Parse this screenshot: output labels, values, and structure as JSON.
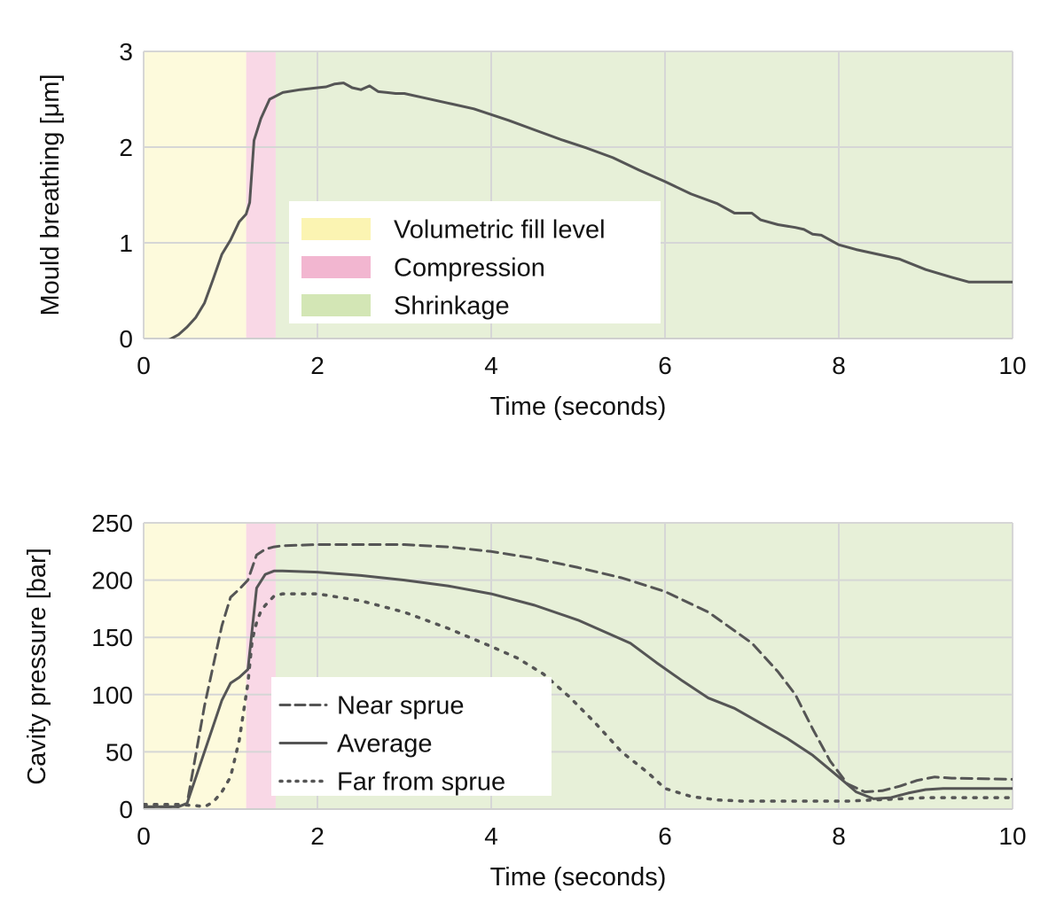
{
  "chart_data": [
    {
      "type": "line",
      "xlabel": "Time (seconds)",
      "ylabel": "Mould breathing [μm]",
      "xlim": [
        0,
        10
      ],
      "ylim": [
        0,
        3
      ],
      "xticks": [
        0,
        2,
        4,
        6,
        8,
        10
      ],
      "yticks": [
        0,
        1,
        2,
        3
      ],
      "grid": true,
      "legend_position": "center-left",
      "legend": [
        {
          "label": "Volumetric fill level",
          "color": "#fbf4b2"
        },
        {
          "label": "Compression",
          "color": "#f2b6d0"
        },
        {
          "label": "Shrinkage",
          "color": "#d3e6b5"
        }
      ],
      "phases": [
        {
          "label": "Volumetric fill level",
          "start": 0,
          "end": 1.18,
          "color": "#fdfadc"
        },
        {
          "label": "Compression",
          "start": 1.18,
          "end": 1.52,
          "color": "#f9d8e6"
        },
        {
          "label": "Shrinkage",
          "start": 1.52,
          "end": 10,
          "color": "#e7f0d8"
        }
      ],
      "series": [
        {
          "style": "solid",
          "color": "#555555",
          "x": [
            0,
            0.1,
            0.2,
            0.3,
            0.4,
            0.5,
            0.6,
            0.7,
            0.8,
            0.9,
            1.0,
            1.1,
            1.18,
            1.22,
            1.27,
            1.35,
            1.45,
            1.6,
            1.8,
            2.0,
            2.1,
            2.2,
            2.3,
            2.4,
            2.5,
            2.6,
            2.7,
            2.8,
            2.9,
            3.0,
            3.2,
            3.5,
            3.8,
            4.0,
            4.2,
            4.5,
            4.8,
            5.1,
            5.4,
            5.7,
            6.0,
            6.3,
            6.6,
            6.8,
            7.0,
            7.1,
            7.3,
            7.5,
            7.6,
            7.7,
            7.8,
            8.0,
            8.2,
            8.5,
            8.7,
            9.0,
            9.3,
            9.5,
            10.0
          ],
          "y": [
            -0.02,
            -0.03,
            -0.03,
            -0.01,
            0.04,
            0.12,
            0.22,
            0.37,
            0.62,
            0.88,
            1.03,
            1.22,
            1.3,
            1.42,
            2.07,
            2.3,
            2.5,
            2.57,
            2.6,
            2.62,
            2.63,
            2.66,
            2.67,
            2.62,
            2.6,
            2.64,
            2.58,
            2.57,
            2.56,
            2.56,
            2.52,
            2.46,
            2.4,
            2.34,
            2.28,
            2.18,
            2.08,
            1.99,
            1.89,
            1.76,
            1.64,
            1.51,
            1.41,
            1.31,
            1.31,
            1.24,
            1.19,
            1.16,
            1.14,
            1.09,
            1.08,
            0.98,
            0.93,
            0.87,
            0.83,
            0.72,
            0.64,
            0.59,
            0.59
          ]
        }
      ]
    },
    {
      "type": "line",
      "xlabel": "Time (seconds)",
      "ylabel": "Cavity pressure [bar]",
      "xlim": [
        0,
        10
      ],
      "ylim": [
        0,
        250
      ],
      "xticks": [
        0,
        2,
        4,
        6,
        8,
        10
      ],
      "yticks": [
        0,
        50,
        100,
        150,
        200,
        250
      ],
      "grid": true,
      "legend_position": "lower-left",
      "legend": [
        {
          "label": "Near sprue",
          "style": "dashed"
        },
        {
          "label": "Average",
          "style": "solid"
        },
        {
          "label": "Far from sprue",
          "style": "dotted"
        }
      ],
      "phases": [
        {
          "label": "Volumetric fill level",
          "start": 0,
          "end": 1.18,
          "color": "#fdfadc"
        },
        {
          "label": "Compression",
          "start": 1.18,
          "end": 1.52,
          "color": "#f9d8e6"
        },
        {
          "label": "Shrinkage",
          "start": 1.52,
          "end": 10,
          "color": "#e7f0d8"
        }
      ],
      "series": [
        {
          "name": "Near sprue",
          "style": "dashed",
          "color": "#555555",
          "x": [
            0,
            0.4,
            0.5,
            0.7,
            0.9,
            1.0,
            1.1,
            1.2,
            1.3,
            1.4,
            1.5,
            1.6,
            2.0,
            2.5,
            3.0,
            3.5,
            4.0,
            4.5,
            5.0,
            5.5,
            6.0,
            6.5,
            7.0,
            7.3,
            7.5,
            7.7,
            7.9,
            8.1,
            8.3,
            8.5,
            8.7,
            8.9,
            9.1,
            9.3,
            10.0
          ],
          "y": [
            2,
            2,
            5,
            90,
            160,
            185,
            192,
            200,
            222,
            227,
            229,
            230,
            231,
            231,
            231,
            229,
            225,
            219,
            211,
            202,
            190,
            172,
            145,
            120,
            100,
            70,
            42,
            22,
            15,
            16,
            20,
            25,
            28,
            27,
            26
          ]
        },
        {
          "name": "Average",
          "style": "solid",
          "color": "#555555",
          "x": [
            0,
            0.4,
            0.5,
            0.7,
            0.9,
            1.0,
            1.1,
            1.2,
            1.3,
            1.4,
            1.5,
            1.6,
            2.0,
            2.5,
            3.0,
            3.5,
            4.0,
            4.5,
            5.0,
            5.3,
            5.6,
            5.9,
            6.2,
            6.5,
            6.8,
            7.1,
            7.4,
            7.7,
            8.0,
            8.2,
            8.4,
            8.6,
            8.8,
            9.0,
            9.2,
            10.0
          ],
          "y": [
            2,
            2,
            5,
            50,
            95,
            110,
            115,
            122,
            193,
            205,
            208,
            208,
            207,
            204,
            200,
            195,
            188,
            178,
            165,
            155,
            145,
            128,
            112,
            97,
            88,
            75,
            62,
            47,
            28,
            15,
            9,
            10,
            14,
            17,
            18,
            18
          ]
        },
        {
          "name": "Far from sprue",
          "style": "dotted",
          "color": "#555555",
          "x": [
            0,
            0.4,
            0.6,
            0.7,
            0.8,
            0.9,
            1.0,
            1.1,
            1.2,
            1.25,
            1.3,
            1.35,
            1.4,
            1.5,
            1.6,
            2.0,
            2.5,
            3.0,
            3.5,
            4.0,
            4.3,
            4.6,
            4.9,
            5.2,
            5.5,
            5.8,
            6.0,
            6.3,
            6.6,
            6.9,
            7.2,
            7.5,
            7.8,
            8.1,
            8.4,
            8.7,
            9.0,
            10.0
          ],
          "y": [
            4,
            4,
            3,
            2,
            6,
            15,
            28,
            60,
            110,
            148,
            163,
            173,
            178,
            186,
            188,
            188,
            182,
            172,
            158,
            142,
            132,
            118,
            98,
            75,
            50,
            32,
            18,
            11,
            8,
            7,
            7,
            7,
            7,
            7,
            8,
            9,
            10,
            10
          ]
        }
      ]
    }
  ]
}
